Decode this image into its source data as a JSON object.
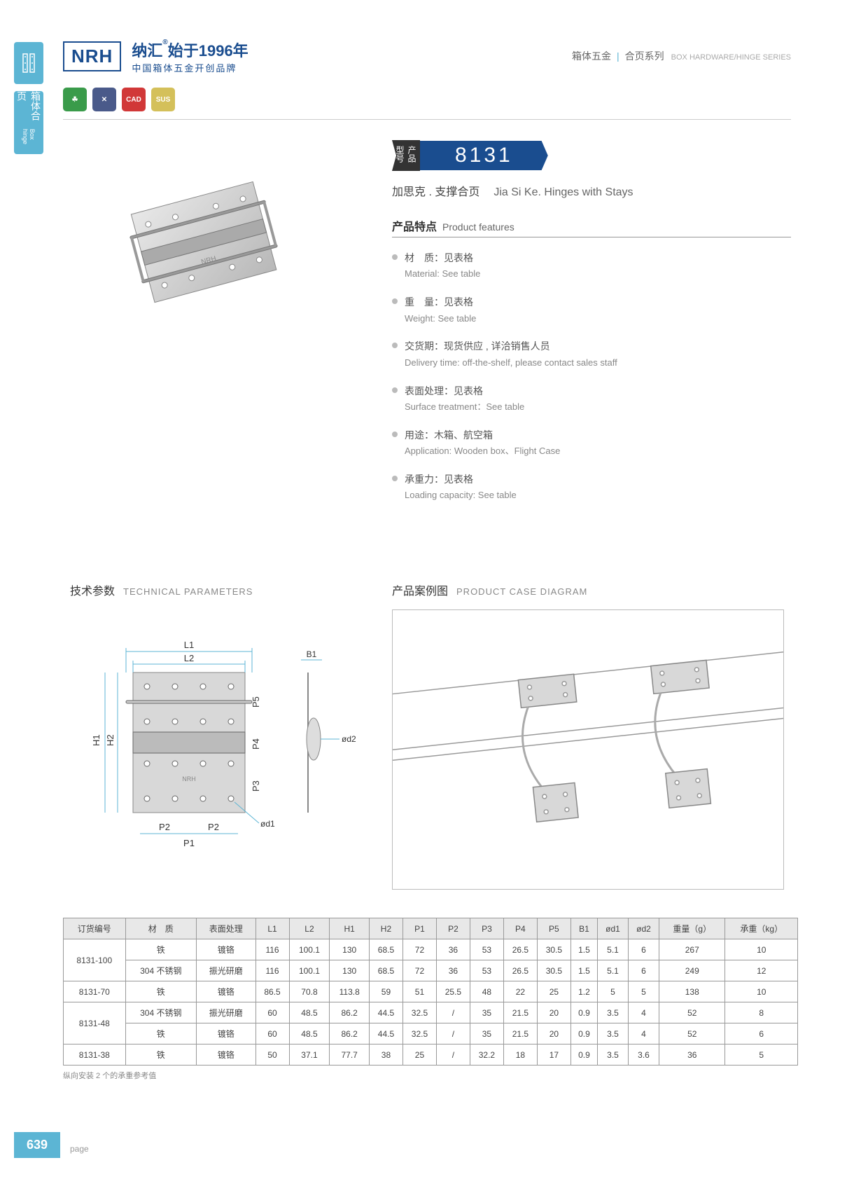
{
  "sideTab2": {
    "cn": "箱体合页",
    "en": "Box hinge"
  },
  "logo": {
    "box": "NRH",
    "t1a": "纳汇",
    "t1b": "始于1996年",
    "t2": "中国箱体五金开创品牌"
  },
  "headerRight": {
    "cn1": "箱体五金",
    "cn2": "合页系列",
    "en": "BOX HARDWARE/HINGE SERIES"
  },
  "icons": [
    "☘",
    "✕",
    "CAD",
    "SUS"
  ],
  "model": {
    "lbl": "产品型号",
    "num": "8131"
  },
  "subtitle": {
    "cn": "加思克 . 支撑合页",
    "en": "Jia Si Ke. Hinges with Stays"
  },
  "featuresTitle": {
    "cn": "产品特点",
    "en": "Product features"
  },
  "features": [
    {
      "cn": "材　质：见表格",
      "en": "Material: See table"
    },
    {
      "cn": "重　量：见表格",
      "en": "Weight: See table"
    },
    {
      "cn": "交货期：现货供应 , 详洽销售人员",
      "en": "Delivery time: off-the-shelf, please contact sales staff"
    },
    {
      "cn": "表面处理：见表格",
      "en": "Surface treatment：See table"
    },
    {
      "cn": "用途：木箱、航空箱",
      "en": "Application: Wooden box、Flight Case"
    },
    {
      "cn": "承重力：见表格",
      "en": "Loading capacity: See table"
    }
  ],
  "techTitle": {
    "cn": "技术参数",
    "en": "TECHNICAL PARAMETERS"
  },
  "caseTitle": {
    "cn": "产品案例图",
    "en": "PRODUCT CASE DIAGRAM"
  },
  "diagLabels": {
    "L1": "L1",
    "L2": "L2",
    "H1": "H1",
    "H2": "H2",
    "P1": "P1",
    "P2": "P2",
    "P3": "P3",
    "P4": "P4",
    "P5": "P5",
    "B1": "B1",
    "od1": "ød1",
    "od2": "ød2"
  },
  "table": {
    "headers": [
      "订货编号",
      "材　质",
      "表面处理",
      "L1",
      "L2",
      "H1",
      "H2",
      "P1",
      "P2",
      "P3",
      "P4",
      "P5",
      "B1",
      "ød1",
      "ød2",
      "重量（g）",
      "承重（kg）"
    ],
    "rows": [
      [
        "8131-100",
        "铁",
        "镀铬",
        "116",
        "100.1",
        "130",
        "68.5",
        "72",
        "36",
        "53",
        "26.5",
        "30.5",
        "1.5",
        "5.1",
        "6",
        "267",
        "10"
      ],
      [
        "",
        "304 不锈钢",
        "振光研磨",
        "116",
        "100.1",
        "130",
        "68.5",
        "72",
        "36",
        "53",
        "26.5",
        "30.5",
        "1.5",
        "5.1",
        "6",
        "249",
        "12"
      ],
      [
        "8131-70",
        "铁",
        "镀铬",
        "86.5",
        "70.8",
        "113.8",
        "59",
        "51",
        "25.5",
        "48",
        "22",
        "25",
        "1.2",
        "5",
        "5",
        "138",
        "10"
      ],
      [
        "8131-48",
        "304 不锈钢",
        "振光研磨",
        "60",
        "48.5",
        "86.2",
        "44.5",
        "32.5",
        "/",
        "35",
        "21.5",
        "20",
        "0.9",
        "3.5",
        "4",
        "52",
        "8"
      ],
      [
        "",
        "铁",
        "镀铬",
        "60",
        "48.5",
        "86.2",
        "44.5",
        "32.5",
        "/",
        "35",
        "21.5",
        "20",
        "0.9",
        "3.5",
        "4",
        "52",
        "6"
      ],
      [
        "8131-38",
        "铁",
        "镀铬",
        "50",
        "37.1",
        "77.7",
        "38",
        "25",
        "/",
        "32.2",
        "18",
        "17",
        "0.9",
        "3.5",
        "3.6",
        "36",
        "5"
      ]
    ],
    "rowspans": {
      "0": 2,
      "3": 2
    }
  },
  "note": "纵向安装 2 个的承重参考值",
  "pageNum": "639",
  "pageLbl": "page"
}
